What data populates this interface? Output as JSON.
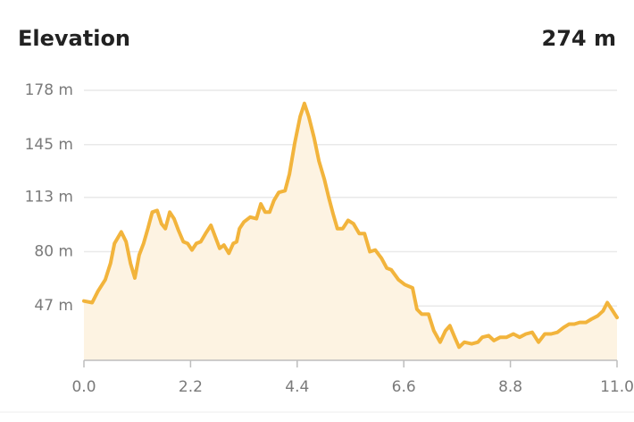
{
  "chart_data": {
    "type": "line",
    "title": "Elevation",
    "summary": "274 m",
    "x": [
      0.0,
      0.17,
      0.29,
      0.44,
      0.55,
      0.63,
      0.77,
      0.87,
      0.96,
      1.05,
      1.14,
      1.23,
      1.32,
      1.41,
      1.51,
      1.6,
      1.68,
      1.77,
      1.86,
      1.95,
      2.05,
      2.14,
      2.23,
      2.32,
      2.41,
      2.51,
      2.62,
      2.71,
      2.8,
      2.89,
      2.99,
      3.08,
      3.15,
      3.21,
      3.3,
      3.43,
      3.56,
      3.65,
      3.74,
      3.83,
      3.92,
      4.02,
      4.15,
      4.24,
      4.35,
      4.46,
      4.55,
      4.64,
      4.75,
      4.85,
      4.96,
      5.05,
      5.14,
      5.23,
      5.34,
      5.45,
      5.56,
      5.68,
      5.79,
      5.9,
      6.01,
      6.14,
      6.25,
      6.34,
      6.49,
      6.62,
      6.78,
      6.87,
      6.97,
      7.11,
      7.22,
      7.35,
      7.46,
      7.55,
      7.65,
      7.74,
      7.85,
      8.0,
      8.13,
      8.22,
      8.35,
      8.46,
      8.59,
      8.72,
      8.86,
      8.99,
      9.12,
      9.25,
      9.38,
      9.51,
      9.64,
      9.77,
      9.9,
      10.01,
      10.12,
      10.23,
      10.36,
      10.47,
      10.6,
      10.71,
      10.8,
      10.89,
      11.0
    ],
    "series": [
      {
        "name": "Elevation",
        "color": "#f2b43c",
        "fill": "#fdf3e2",
        "values": [
          50,
          49,
          56,
          63,
          73,
          85,
          92,
          86,
          73,
          64,
          78,
          85,
          94,
          104,
          105,
          97,
          94,
          104,
          100,
          93,
          86,
          85,
          81,
          85,
          86,
          91,
          96,
          89,
          82,
          84,
          79,
          85,
          86,
          94,
          98,
          101,
          100,
          109,
          104,
          104,
          111,
          116,
          117,
          127,
          146,
          162,
          170,
          162,
          149,
          135,
          124,
          113,
          103,
          94,
          94,
          99,
          97,
          91,
          91,
          80,
          81,
          76,
          70,
          69,
          63,
          60,
          58,
          45,
          42,
          42,
          32,
          25,
          32,
          35,
          28,
          22,
          25,
          24,
          25,
          28,
          29,
          26,
          28,
          28,
          30,
          28,
          30,
          31,
          25,
          30,
          30,
          31,
          34,
          36,
          36,
          37,
          37,
          39,
          41,
          44,
          49,
          45,
          40
        ]
      }
    ],
    "xlim": [
      0,
      11
    ],
    "ylim": [
      14,
      178
    ],
    "xticks": [
      {
        "value": 0,
        "label": "0.0"
      },
      2.2,
      4.4,
      6.6,
      8.8,
      {
        "value": 11,
        "label": "11.0"
      }
    ],
    "yticks": [
      {
        "value": 47,
        "label": "47 m"
      },
      {
        "value": 80,
        "label": "80 m"
      },
      {
        "value": 113,
        "label": "113 m"
      },
      {
        "value": 145,
        "label": "145 m"
      },
      {
        "value": 178,
        "label": "178 m"
      }
    ],
    "grid": true
  }
}
